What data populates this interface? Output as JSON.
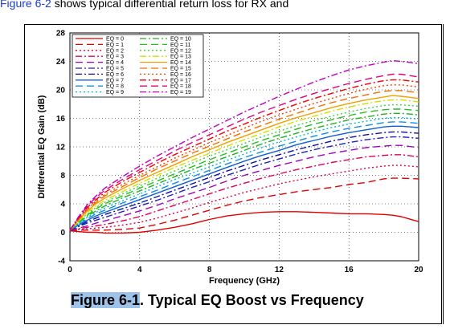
{
  "intro": {
    "link": "Figure 6-2",
    "rest": " shows typical differential return loss for RX and"
  },
  "figure": {
    "label": "Figure 6-1",
    "title": ". Typical EQ Boost vs Frequency"
  },
  "chart_data": {
    "type": "line",
    "xlabel": "Frequency (GHz)",
    "ylabel": "Differential EQ Gain (dB)",
    "xlim": [
      0,
      20
    ],
    "ylim": [
      -4,
      28
    ],
    "xticks": [
      0,
      4,
      8,
      12,
      16,
      20
    ],
    "yticks": [
      -4,
      0,
      4,
      8,
      12,
      16,
      20,
      24,
      28
    ],
    "grid": true,
    "legend_position": "top-left",
    "x": [
      0,
      0.5,
      1,
      1.5,
      2,
      3,
      4,
      5,
      6,
      7,
      8,
      9,
      10,
      11,
      12,
      13,
      14,
      15,
      16,
      17,
      18,
      18.5,
      19,
      20
    ],
    "series": [
      {
        "name": "EQ = 0",
        "color": "#e00000",
        "dash": "solid",
        "values": [
          0.2,
          0.1,
          0.0,
          0.0,
          -0.1,
          -0.1,
          0.0,
          0.3,
          0.7,
          1.2,
          1.8,
          2.3,
          2.6,
          2.8,
          2.9,
          2.9,
          2.8,
          2.7,
          2.6,
          2.6,
          2.5,
          2.4,
          2.2,
          1.5
        ]
      },
      {
        "name": "EQ = 1",
        "color": "#e00000",
        "dash": "long",
        "values": [
          0.3,
          0.3,
          0.3,
          0.3,
          0.3,
          0.4,
          0.6,
          1.1,
          1.7,
          2.4,
          3.1,
          3.8,
          4.4,
          4.9,
          5.3,
          5.7,
          6.0,
          6.3,
          6.7,
          7.0,
          7.5,
          7.6,
          7.6,
          7.5
        ]
      },
      {
        "name": "EQ = 2",
        "color": "#e00040",
        "dash": "dot",
        "values": [
          0.3,
          0.4,
          0.5,
          0.6,
          0.7,
          1.0,
          1.4,
          2.0,
          2.7,
          3.4,
          4.2,
          4.9,
          5.6,
          6.2,
          6.8,
          7.3,
          7.8,
          8.2,
          8.6,
          9.0,
          9.3,
          9.4,
          9.4,
          9.2
        ]
      },
      {
        "name": "EQ = 3",
        "color": "#e0005a",
        "dash": "dashdot",
        "values": [
          0.3,
          0.5,
          0.7,
          0.9,
          1.1,
          1.6,
          2.2,
          3.0,
          3.8,
          4.6,
          5.4,
          6.2,
          6.9,
          7.6,
          8.2,
          8.8,
          9.3,
          9.8,
          10.2,
          10.6,
          10.8,
          10.9,
          10.9,
          10.6
        ]
      },
      {
        "name": "EQ = 4",
        "color": "#a000c0",
        "dash": "long",
        "values": [
          0.3,
          0.6,
          0.9,
          1.3,
          1.6,
          2.3,
          3.0,
          3.8,
          4.7,
          5.5,
          6.3,
          7.2,
          8.0,
          8.7,
          9.4,
          10.0,
          10.6,
          11.1,
          11.5,
          11.9,
          12.1,
          12.2,
          12.2,
          11.9
        ]
      },
      {
        "name": "EQ = 5",
        "color": "#2020c0",
        "dash": "dashdot",
        "values": [
          0.3,
          0.8,
          1.3,
          1.7,
          2.1,
          2.9,
          3.7,
          4.5,
          5.4,
          6.3,
          7.1,
          8.0,
          8.8,
          9.6,
          10.3,
          11.0,
          11.6,
          12.1,
          12.6,
          13.0,
          13.3,
          13.4,
          13.4,
          13.2
        ]
      },
      {
        "name": "EQ = 6",
        "color": "#1010a0",
        "dash": "dashdot",
        "values": [
          0.3,
          0.9,
          1.5,
          2.0,
          2.5,
          3.3,
          4.1,
          5.0,
          5.9,
          6.8,
          7.7,
          8.6,
          9.4,
          10.2,
          10.9,
          11.6,
          12.2,
          12.8,
          13.3,
          13.7,
          14.0,
          14.1,
          14.1,
          13.9
        ]
      },
      {
        "name": "EQ = 7",
        "color": "#1060d0",
        "dash": "solid",
        "values": [
          0.3,
          1.0,
          1.7,
          2.3,
          2.8,
          3.7,
          4.6,
          5.5,
          6.4,
          7.3,
          8.2,
          9.1,
          10.0,
          10.8,
          11.5,
          12.3,
          12.9,
          13.5,
          14.0,
          14.4,
          14.8,
          14.9,
          14.9,
          14.7
        ]
      },
      {
        "name": "EQ = 8",
        "color": "#1090e0",
        "dash": "long",
        "values": [
          0.3,
          1.1,
          1.9,
          2.6,
          3.1,
          4.1,
          5.0,
          5.9,
          6.9,
          7.8,
          8.7,
          9.6,
          10.5,
          11.3,
          12.1,
          12.8,
          13.5,
          14.1,
          14.6,
          15.0,
          15.4,
          15.5,
          15.5,
          15.3
        ]
      },
      {
        "name": "EQ = 9",
        "color": "#00b0e0",
        "dash": "dot",
        "values": [
          0.3,
          1.2,
          2.1,
          2.8,
          3.4,
          4.4,
          5.4,
          6.4,
          7.4,
          8.3,
          9.2,
          10.1,
          11.0,
          11.9,
          12.7,
          13.4,
          14.1,
          14.7,
          15.2,
          15.6,
          16.0,
          16.1,
          16.1,
          15.9
        ]
      },
      {
        "name": "EQ = 10",
        "color": "#20b020",
        "dash": "dashdot",
        "values": [
          0.3,
          1.3,
          2.3,
          3.0,
          3.7,
          4.8,
          5.8,
          6.8,
          7.8,
          8.8,
          9.7,
          10.6,
          11.5,
          12.4,
          13.2,
          13.9,
          14.6,
          15.2,
          15.8,
          16.2,
          16.6,
          16.7,
          16.7,
          16.5
        ]
      },
      {
        "name": "EQ = 11",
        "color": "#20c020",
        "dash": "long",
        "values": [
          0.3,
          1.4,
          2.4,
          3.3,
          4.0,
          5.1,
          6.2,
          7.2,
          8.2,
          9.2,
          10.2,
          11.1,
          12.0,
          12.9,
          13.7,
          14.5,
          15.2,
          15.8,
          16.4,
          16.9,
          17.2,
          17.3,
          17.3,
          17.1
        ]
      },
      {
        "name": "EQ = 12",
        "color": "#40d040",
        "dash": "dot",
        "values": [
          0.3,
          1.5,
          2.6,
          3.5,
          4.2,
          5.4,
          6.5,
          7.6,
          8.6,
          9.7,
          10.7,
          11.6,
          12.5,
          13.4,
          14.2,
          15.0,
          15.7,
          16.3,
          16.9,
          17.4,
          17.8,
          17.9,
          17.9,
          17.7
        ]
      },
      {
        "name": "EQ = 13",
        "color": "#d0e000",
        "dash": "dashdot",
        "values": [
          0.3,
          1.6,
          2.8,
          3.7,
          4.5,
          5.7,
          6.9,
          8.0,
          9.1,
          10.1,
          11.1,
          12.1,
          13.0,
          13.9,
          14.8,
          15.6,
          16.3,
          17.0,
          17.6,
          18.1,
          18.5,
          18.6,
          18.6,
          18.3
        ]
      },
      {
        "name": "EQ = 14",
        "color": "#f0a000",
        "dash": "solid",
        "values": [
          0.3,
          1.7,
          3.0,
          4.0,
          4.8,
          6.1,
          7.3,
          8.4,
          9.5,
          10.6,
          11.6,
          12.6,
          13.5,
          14.4,
          15.3,
          16.1,
          16.8,
          17.5,
          18.1,
          18.6,
          19.0,
          19.2,
          19.1,
          18.8
        ]
      },
      {
        "name": "EQ = 15",
        "color": "#f07000",
        "dash": "long",
        "values": [
          0.3,
          1.8,
          3.2,
          4.2,
          5.1,
          6.4,
          7.7,
          8.9,
          10.0,
          11.1,
          12.1,
          13.1,
          14.1,
          15.0,
          15.9,
          16.7,
          17.5,
          18.2,
          18.8,
          19.3,
          19.8,
          19.9,
          19.9,
          19.6
        ]
      },
      {
        "name": "EQ = 16",
        "color": "#f04000",
        "dash": "dot",
        "values": [
          0.3,
          1.9,
          3.3,
          4.4,
          5.3,
          6.7,
          8.0,
          9.2,
          10.4,
          11.5,
          12.6,
          13.6,
          14.6,
          15.6,
          16.5,
          17.3,
          18.1,
          18.8,
          19.5,
          20.1,
          20.6,
          20.7,
          20.7,
          20.4
        ]
      },
      {
        "name": "EQ = 17",
        "color": "#f00000",
        "dash": "dashdot",
        "values": [
          0.3,
          2.0,
          3.5,
          4.6,
          5.6,
          7.1,
          8.4,
          9.7,
          10.9,
          12.0,
          13.1,
          14.2,
          15.2,
          16.2,
          17.1,
          18.0,
          18.8,
          19.5,
          20.2,
          20.8,
          21.3,
          21.4,
          21.4,
          21.1
        ]
      },
      {
        "name": "EQ = 18",
        "color": "#e00080",
        "dash": "long",
        "values": [
          0.3,
          2.1,
          3.7,
          4.9,
          5.9,
          7.4,
          8.8,
          10.1,
          11.4,
          12.6,
          13.7,
          14.8,
          15.9,
          16.9,
          17.8,
          18.7,
          19.5,
          20.2,
          20.9,
          21.5,
          22.0,
          22.2,
          22.2,
          21.8
        ]
      },
      {
        "name": "EQ = 19",
        "color": "#c000c0",
        "dash": "dashdot",
        "values": [
          0.3,
          2.2,
          3.9,
          5.1,
          6.2,
          7.8,
          9.3,
          10.7,
          12.0,
          13.3,
          14.5,
          15.7,
          16.9,
          18.0,
          19.1,
          20.1,
          21.1,
          22.0,
          22.8,
          23.4,
          23.9,
          24.1,
          24.0,
          23.7
        ]
      }
    ]
  }
}
